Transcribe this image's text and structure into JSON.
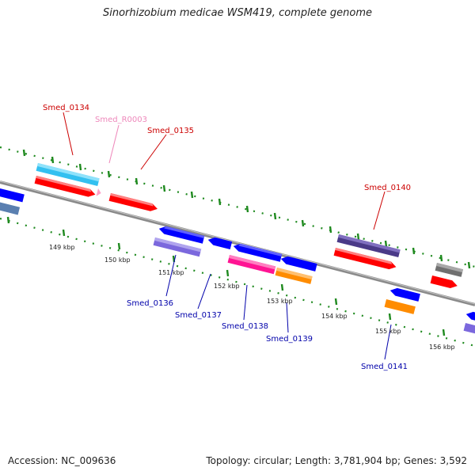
{
  "title": "Sinorhizobium medicae WSM419, complete genome",
  "footer": {
    "accession": "Accession: NC_009636",
    "topology": "Topology: circular; Length: 3,781,904 bp; Genes: 3,592"
  },
  "colors": {
    "backbone": "#8a8a8a",
    "tick": "#1f8a1f",
    "forward_label": "#cc0000",
    "reverse_label": "#0000aa",
    "rna_label": "#ee88bb"
  },
  "ticks": [
    "149 kbp",
    "150 kbp",
    "151 kbp",
    "152 kbp",
    "153 kbp",
    "154 kbp",
    "155 kbp",
    "156 kbp"
  ],
  "genes": [
    {
      "label": "Smed_0134",
      "strand": "forward",
      "color": "#ff0000"
    },
    {
      "label": "Smed_R0003",
      "strand": "forward",
      "color": "#ff9ec8"
    },
    {
      "label": "Smed_0135",
      "strand": "forward",
      "color": "#ff0000"
    },
    {
      "label": "Smed_0140",
      "strand": "forward",
      "color": "#ff0000"
    },
    {
      "label": "Smed_0136",
      "strand": "reverse",
      "color": "#0000ff"
    },
    {
      "label": "Smed_0137",
      "strand": "reverse",
      "color": "#0000ff"
    },
    {
      "label": "Smed_0138",
      "strand": "reverse",
      "color": "#0000ff"
    },
    {
      "label": "Smed_0139",
      "strand": "reverse",
      "color": "#0000ff"
    },
    {
      "label": "Smed_0141",
      "strand": "reverse",
      "color": "#0000ff"
    }
  ]
}
